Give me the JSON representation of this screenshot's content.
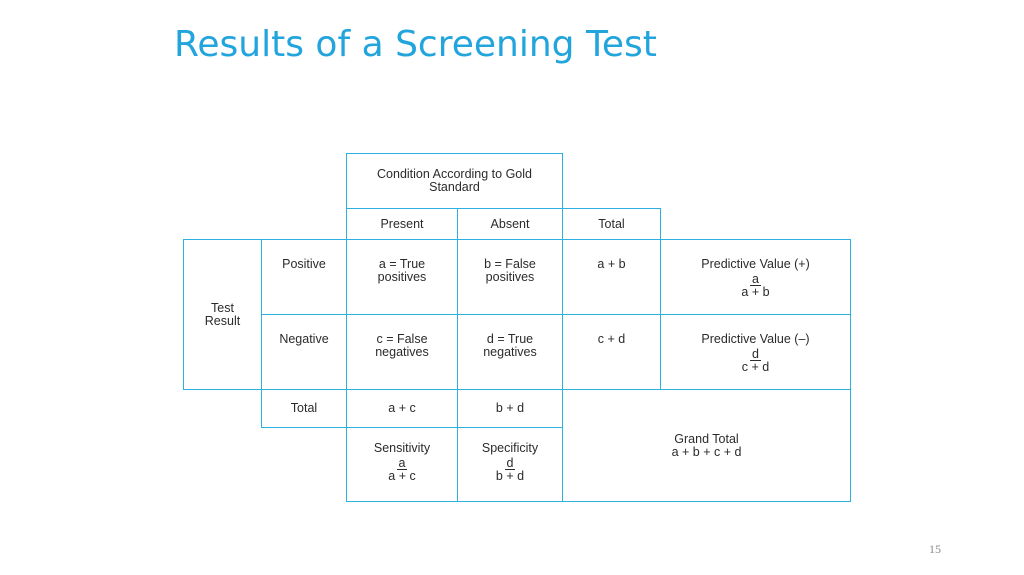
{
  "slide": {
    "title": "Results of a Screening Test",
    "page_number": "15"
  },
  "table": {
    "condition_header_line1": "Condition According to Gold",
    "condition_header_line2": "Standard",
    "col_present": "Present",
    "col_absent": "Absent",
    "col_total": "Total",
    "row_label_line1": "Test",
    "row_label_line2": "Result",
    "row_positive": "Positive",
    "row_negative": "Negative",
    "row_total": "Total",
    "tp_line1": "a = True",
    "tp_line2": "positives",
    "fp_line1": "b = False",
    "fp_line2": "positives",
    "fn_line1": "c = False",
    "fn_line2": "negatives",
    "tn_line1": "d = True",
    "tn_line2": "negatives",
    "pos_total": "a + b",
    "neg_total": "c + d",
    "present_total": "a + c",
    "absent_total": "b + d",
    "ppv_label": "Predictive Value (+)",
    "ppv_num": "a",
    "ppv_den": "a + b",
    "npv_label": "Predictive Value (–)",
    "npv_num": "d",
    "npv_den": "c + d",
    "sens_label": "Sensitivity",
    "sens_num": "a",
    "sens_den": "a + c",
    "spec_label": "Specificity",
    "spec_num": "d",
    "spec_den": "b + d",
    "grand_total_label": "Grand Total",
    "grand_total_value": "a + b + c + d"
  }
}
